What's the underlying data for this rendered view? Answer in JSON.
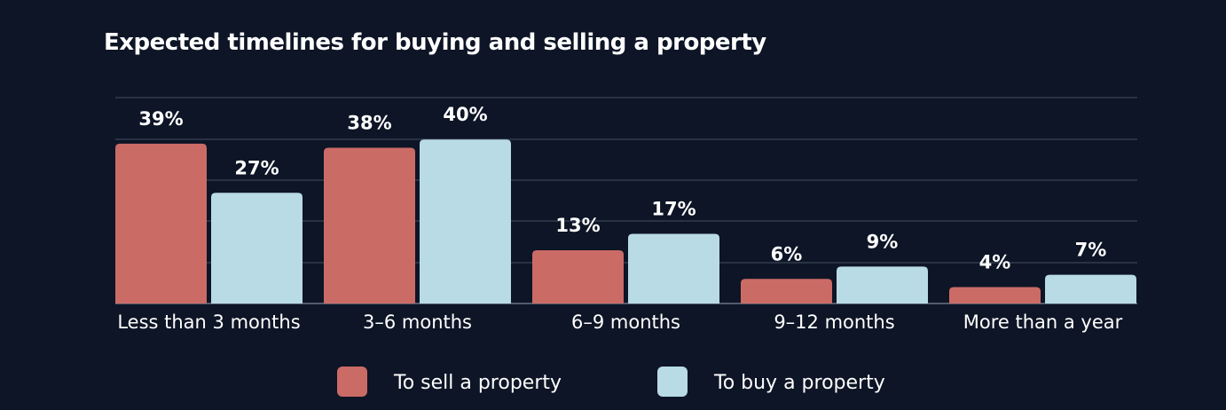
{
  "chart_data": {
    "type": "bar",
    "title": "Expected timelines for buying and selling a property",
    "xlabel": "",
    "ylabel": "",
    "ylim": [
      0,
      40
    ],
    "grid": true,
    "legend_position": "bottom",
    "categories": [
      "Less than 3 months",
      "3–6 months",
      "6–9 months",
      "9–12 months",
      "More than a year"
    ],
    "series": [
      {
        "name": "To sell a property",
        "color": "#cb6b66",
        "values": [
          39,
          38,
          13,
          6,
          4
        ],
        "labels": [
          "39%",
          "38%",
          "13%",
          "6%",
          "4%"
        ]
      },
      {
        "name": "To buy a property",
        "color": "#b8dbe6",
        "values": [
          27,
          40,
          17,
          9,
          7
        ],
        "labels": [
          "27%",
          "40%",
          "17%",
          "9%",
          "7%"
        ]
      }
    ]
  }
}
